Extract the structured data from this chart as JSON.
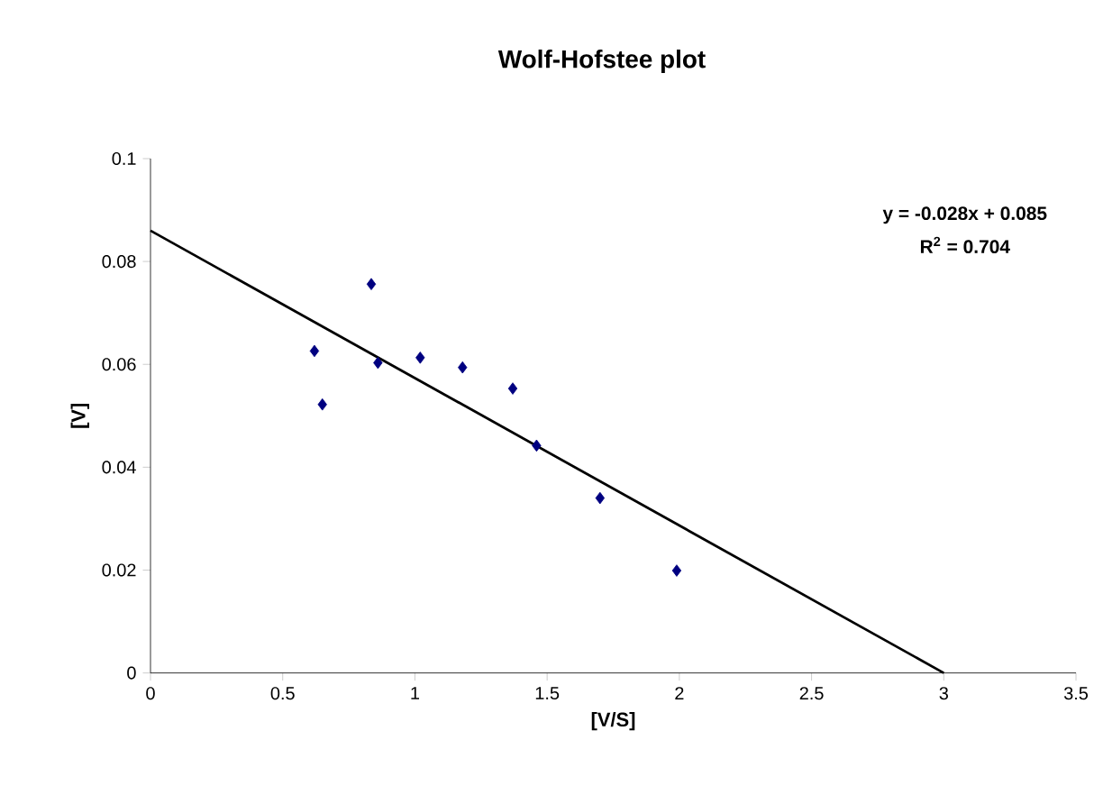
{
  "chart_data": {
    "type": "scatter",
    "title": "Wolf-Hofstee plot",
    "xlabel": "[V/S]",
    "ylabel": "[V]",
    "xlim": [
      0,
      3.5
    ],
    "xticks": [
      0,
      0.5,
      1,
      1.5,
      2,
      2.5,
      3,
      3.5
    ],
    "ylim": [
      0,
      0.1
    ],
    "yticks": [
      0,
      0.02,
      0.04,
      0.06,
      0.08,
      0.1
    ],
    "grid": false,
    "series": [
      {
        "marker": "diamond",
        "color": "#000080",
        "x": [
          0.62,
          0.65,
          0.835,
          0.86,
          1.02,
          1.18,
          1.37,
          1.46,
          1.7,
          1.99
        ],
        "values": [
          0.0626,
          0.0522,
          0.0756,
          0.0603,
          0.0613,
          0.0594,
          0.0553,
          0.0442,
          0.034,
          0.0199
        ]
      },
      {
        "type": "line",
        "marker": "none",
        "line_style": "solid",
        "color": "#000000",
        "x": [
          0,
          3
        ],
        "values": [
          0.086,
          0.0
        ]
      }
    ],
    "annotations": [
      "y = -0.028x + 0.085",
      "R$^{2}$ = 0.704"
    ]
  }
}
